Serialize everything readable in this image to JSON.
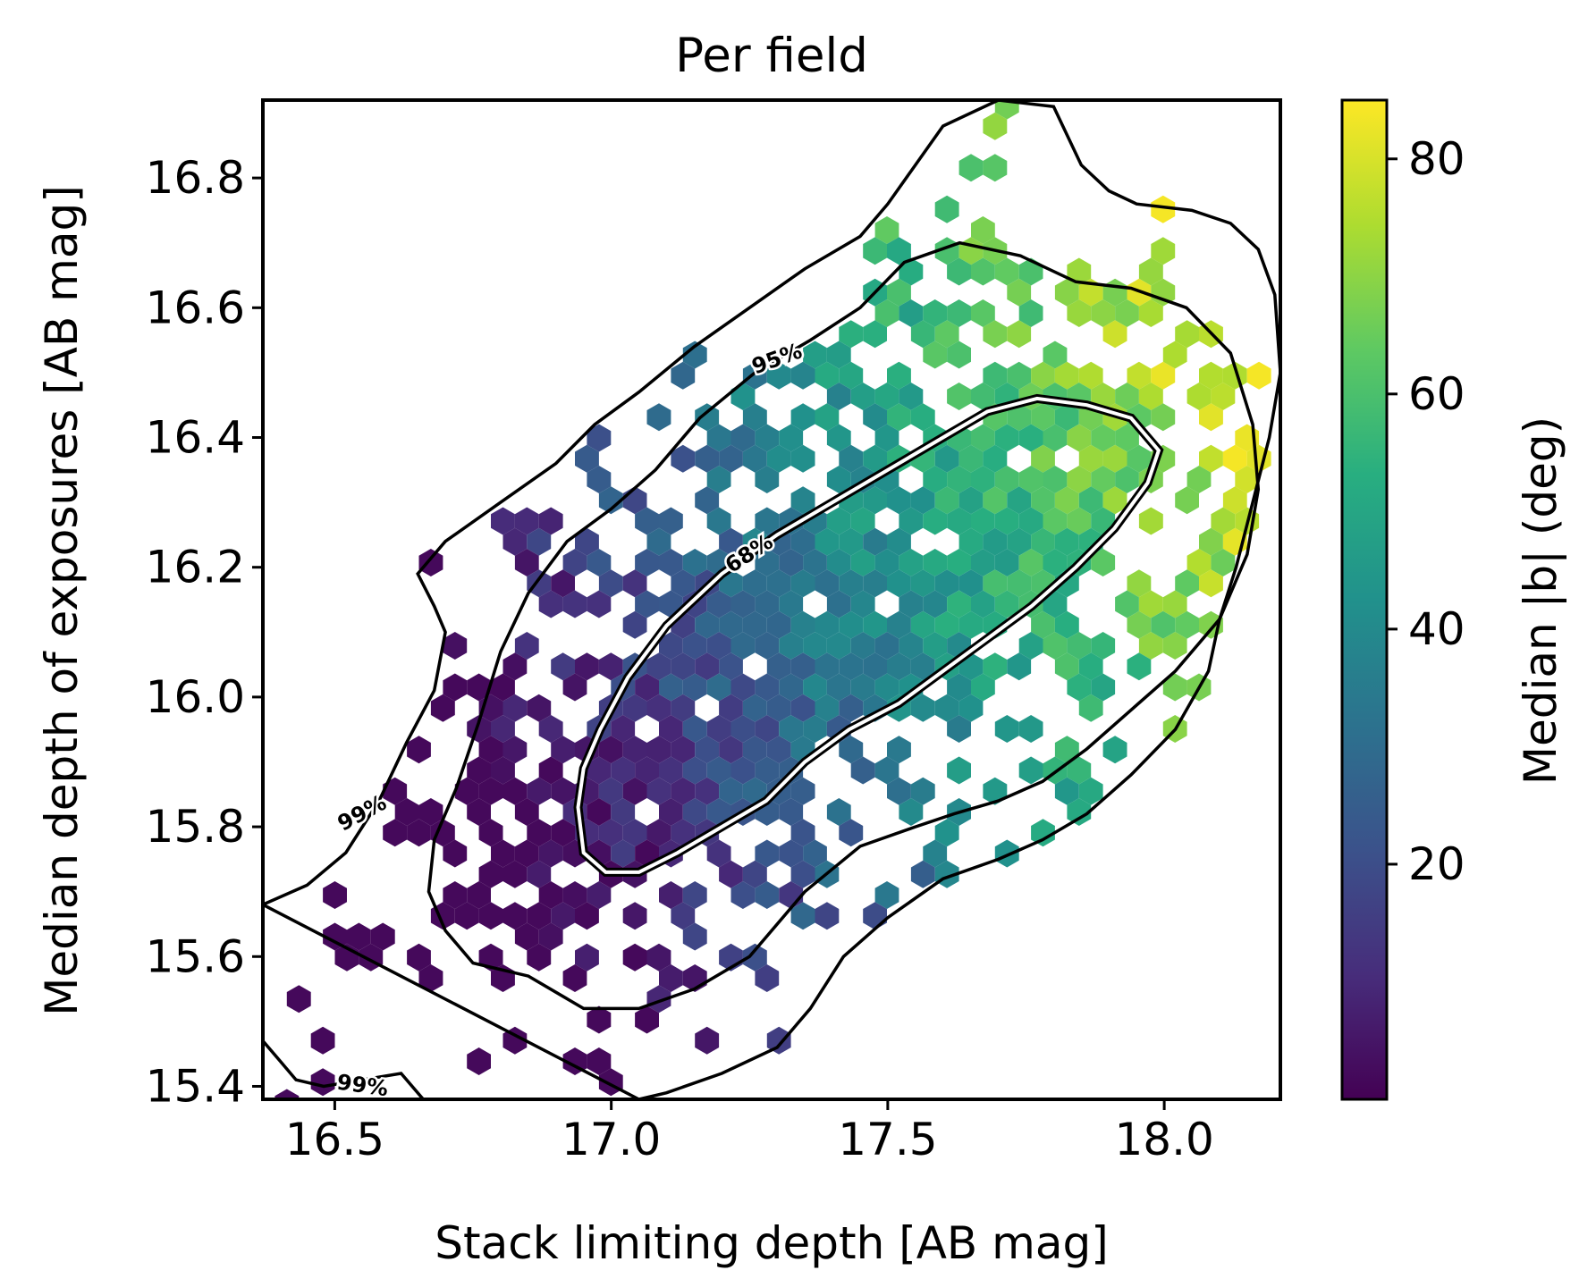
{
  "chart_data": {
    "type": "hexbin",
    "title": "Per field",
    "xlabel": "Stack limiting depth [AB mag]",
    "ylabel": "Median depth of exposures [AB mag]",
    "xlim": [
      16.37,
      18.21
    ],
    "ylim": [
      15.38,
      16.92
    ],
    "xticks": [
      16.5,
      17.0,
      17.5,
      18.0
    ],
    "xtick_labels": [
      "16.5",
      "17.0",
      "17.5",
      "18.0"
    ],
    "yticks": [
      15.4,
      15.6,
      15.8,
      16.0,
      16.2,
      16.4,
      16.6,
      16.8
    ],
    "ytick_labels": [
      "15.4",
      "15.6",
      "15.8",
      "16.0",
      "16.2",
      "16.4",
      "16.6",
      "16.8"
    ],
    "colorbar": {
      "label": "Median |b| (deg)",
      "range": [
        0,
        85
      ],
      "ticks": [
        20,
        40,
        60,
        80
      ],
      "tick_labels": [
        "20",
        "40",
        "60",
        "80"
      ],
      "colormap": "viridis"
    },
    "trend": {
      "description": "Positive correlation; median |b| rises from ~5 deg at low depths to ~70 deg at high depths",
      "center_x": 17.4,
      "center_y": 16.1,
      "slope": 0.53
    },
    "contours": [
      {
        "level": "68%",
        "label_pos": [
          17.25,
          16.22
        ],
        "points": [
          [
            16.94,
            15.83
          ],
          [
            16.95,
            15.76
          ],
          [
            16.99,
            15.73
          ],
          [
            17.05,
            15.73
          ],
          [
            17.12,
            15.76
          ],
          [
            17.2,
            15.8
          ],
          [
            17.28,
            15.84
          ],
          [
            17.35,
            15.9
          ],
          [
            17.43,
            15.95
          ],
          [
            17.52,
            15.99
          ],
          [
            17.6,
            16.04
          ],
          [
            17.68,
            16.09
          ],
          [
            17.76,
            16.14
          ],
          [
            17.84,
            16.2
          ],
          [
            17.91,
            16.26
          ],
          [
            17.97,
            16.33
          ],
          [
            17.99,
            16.38
          ],
          [
            17.94,
            16.43
          ],
          [
            17.86,
            16.45
          ],
          [
            17.77,
            16.46
          ],
          [
            17.68,
            16.44
          ],
          [
            17.6,
            16.4
          ],
          [
            17.5,
            16.35
          ],
          [
            17.4,
            16.3
          ],
          [
            17.3,
            16.25
          ],
          [
            17.2,
            16.19
          ],
          [
            17.1,
            16.11
          ],
          [
            17.03,
            16.03
          ],
          [
            16.98,
            15.95
          ],
          [
            16.95,
            15.89
          ]
        ]
      },
      {
        "level": "95%",
        "label_pos": [
          17.3,
          16.52
        ],
        "points": [
          [
            16.7,
            15.64
          ],
          [
            16.75,
            15.59
          ],
          [
            16.85,
            15.57
          ],
          [
            16.95,
            15.52
          ],
          [
            17.05,
            15.52
          ],
          [
            17.15,
            15.55
          ],
          [
            17.25,
            15.6
          ],
          [
            17.35,
            15.7
          ],
          [
            17.45,
            15.77
          ],
          [
            17.55,
            15.8
          ],
          [
            17.62,
            15.82
          ],
          [
            17.7,
            15.84
          ],
          [
            17.78,
            15.87
          ],
          [
            17.86,
            15.92
          ],
          [
            17.94,
            15.98
          ],
          [
            18.02,
            16.04
          ],
          [
            18.1,
            16.12
          ],
          [
            18.15,
            16.22
          ],
          [
            18.17,
            16.32
          ],
          [
            18.16,
            16.42
          ],
          [
            18.12,
            16.53
          ],
          [
            18.04,
            16.6
          ],
          [
            17.94,
            16.63
          ],
          [
            17.84,
            16.64
          ],
          [
            17.74,
            16.68
          ],
          [
            17.63,
            16.7
          ],
          [
            17.53,
            16.67
          ],
          [
            17.45,
            16.6
          ],
          [
            17.36,
            16.55
          ],
          [
            17.26,
            16.5
          ],
          [
            17.16,
            16.43
          ],
          [
            17.08,
            16.35
          ],
          [
            17.0,
            16.29
          ],
          [
            16.92,
            16.24
          ],
          [
            16.85,
            16.16
          ],
          [
            16.8,
            16.07
          ],
          [
            16.76,
            15.96
          ],
          [
            16.72,
            15.86
          ],
          [
            16.68,
            15.78
          ],
          [
            16.67,
            15.7
          ]
        ]
      },
      {
        "level": "99%",
        "label_pos": [
          16.55,
          15.82
        ],
        "points": [
          [
            16.37,
            15.68
          ],
          [
            16.45,
            15.71
          ],
          [
            16.52,
            15.76
          ],
          [
            16.58,
            15.84
          ],
          [
            16.63,
            15.93
          ],
          [
            16.68,
            16.01
          ],
          [
            16.7,
            16.1
          ],
          [
            16.68,
            16.14
          ],
          [
            16.65,
            16.19
          ],
          [
            16.7,
            16.24
          ],
          [
            16.8,
            16.3
          ],
          [
            16.9,
            16.36
          ],
          [
            16.97,
            16.42
          ],
          [
            17.05,
            16.47
          ],
          [
            17.15,
            16.54
          ],
          [
            17.25,
            16.6
          ],
          [
            17.35,
            16.66
          ],
          [
            17.45,
            16.71
          ],
          [
            17.5,
            16.76
          ],
          [
            17.55,
            16.82
          ],
          [
            17.6,
            16.88
          ],
          [
            17.7,
            16.92
          ],
          [
            17.8,
            16.91
          ],
          [
            17.85,
            16.82
          ],
          [
            17.9,
            16.78
          ],
          [
            17.95,
            16.76
          ],
          [
            18.05,
            16.75
          ],
          [
            18.12,
            16.73
          ],
          [
            18.17,
            16.69
          ],
          [
            18.2,
            16.62
          ],
          [
            18.21,
            16.5
          ],
          [
            18.19,
            16.4
          ],
          [
            18.16,
            16.3
          ],
          [
            18.13,
            16.2
          ],
          [
            18.1,
            16.12
          ],
          [
            18.08,
            16.04
          ],
          [
            18.02,
            15.95
          ],
          [
            17.94,
            15.88
          ],
          [
            17.86,
            15.82
          ],
          [
            17.78,
            15.78
          ],
          [
            17.7,
            15.75
          ],
          [
            17.6,
            15.72
          ],
          [
            17.5,
            15.66
          ],
          [
            17.42,
            15.6
          ],
          [
            17.36,
            15.52
          ],
          [
            17.3,
            15.46
          ],
          [
            17.2,
            15.42
          ],
          [
            17.1,
            15.39
          ],
          [
            17.05,
            15.38
          ]
        ]
      },
      {
        "level": "99%",
        "label_pos": [
          16.55,
          15.4
        ],
        "points": [
          [
            16.37,
            15.47
          ],
          [
            16.4,
            15.44
          ],
          [
            16.43,
            15.41
          ],
          [
            16.48,
            15.4
          ],
          [
            16.55,
            15.41
          ],
          [
            16.62,
            15.42
          ],
          [
            16.66,
            15.38
          ]
        ]
      }
    ]
  }
}
